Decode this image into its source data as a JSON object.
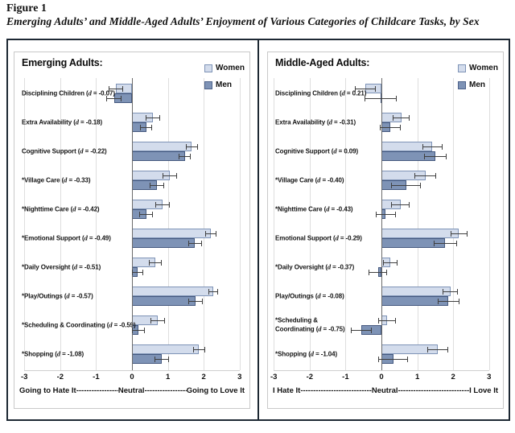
{
  "figure": {
    "label": "Figure 1",
    "caption": "Emerging Adults’ and Middle-Aged Adults’ Enjoyment of Various Categories of Childcare Tasks, by Sex"
  },
  "legend": {
    "women": "Women",
    "men": "Men"
  },
  "colors": {
    "women_fill": "#d3dcec",
    "women_border": "#7e93b6",
    "men_fill": "#7e93b6",
    "men_border": "#45597f",
    "error_bar": "#3f3f3f",
    "gridline": "#dedede",
    "zero_axis": "#6b6b6b",
    "outer_border": "#1d2833",
    "panel_border": "#c9c9c9"
  },
  "axis": {
    "ticks": [
      -3,
      -2,
      -1,
      0,
      1,
      2,
      3
    ],
    "dash_fill": "--------------------------------------------------------------------"
  },
  "chart_data": [
    {
      "type": "bar",
      "orientation": "horizontal",
      "title": "Emerging Adults:",
      "xlim": [
        -3,
        3
      ],
      "series_names": [
        "Women",
        "Men"
      ],
      "axis_caption": {
        "left": "Going to Hate It",
        "mid": "Neutral",
        "right": "Going to Love It"
      },
      "rows": [
        {
          "label": "Disciplining Children",
          "d": "-0.07",
          "women": -0.45,
          "women_err": 0.2,
          "men": -0.5,
          "men_err": 0.22
        },
        {
          "label": "Extra Availability",
          "d": "-0.18",
          "women": 0.58,
          "women_err": 0.2,
          "men": 0.4,
          "men_err": 0.17
        },
        {
          "label": "Cognitive Support",
          "d": "-0.22",
          "women": 1.67,
          "women_err": 0.17,
          "men": 1.47,
          "men_err": 0.17
        },
        {
          "label": "*Village Care",
          "d": "-0.33",
          "women": 1.05,
          "women_err": 0.2,
          "men": 0.7,
          "men_err": 0.2
        },
        {
          "label": "*Nighttime Care",
          "d": "-0.42",
          "women": 0.85,
          "women_err": 0.2,
          "men": 0.4,
          "men_err": 0.19
        },
        {
          "label": "*Emotional Support",
          "d": "-0.49",
          "women": 2.2,
          "women_err": 0.15,
          "men": 1.76,
          "men_err": 0.19
        },
        {
          "label": "*Daily Oversight",
          "d": "-0.51",
          "women": 0.64,
          "women_err": 0.18,
          "men": 0.16,
          "men_err": 0.16
        },
        {
          "label": "*Play/Outings",
          "d": "-0.57",
          "women": 2.26,
          "women_err": 0.14,
          "men": 1.78,
          "men_err": 0.2
        },
        {
          "label": "*Scheduling & Coordinating",
          "d": "-0.59",
          "women": 0.72,
          "women_err": 0.2,
          "men": 0.18,
          "men_err": 0.18
        },
        {
          "label": "*Shopping",
          "d": "-1.08",
          "women": 1.87,
          "women_err": 0.16,
          "men": 0.83,
          "men_err": 0.21
        }
      ]
    },
    {
      "type": "bar",
      "orientation": "horizontal",
      "title": "Middle-Aged Adults:",
      "xlim": [
        -3,
        3
      ],
      "series_names": [
        "Women",
        "Men"
      ],
      "axis_caption": {
        "left": "I Hate It",
        "mid": "Neutral",
        "right": "I Love It"
      },
      "rows": [
        {
          "label": "Disciplining Children",
          "d": "0.21",
          "women": -0.45,
          "women_err": 0.3,
          "men": -0.03,
          "men_err": 0.45
        },
        {
          "label": "Extra Availability",
          "d": "-0.31",
          "women": 0.55,
          "women_err": 0.24,
          "men": 0.25,
          "men_err": 0.29
        },
        {
          "label": "Cognitive Support",
          "d": "0.09",
          "women": 1.42,
          "women_err": 0.28,
          "men": 1.5,
          "men_err": 0.31
        },
        {
          "label": "*Village Care",
          "d": "-0.40",
          "women": 1.23,
          "women_err": 0.3,
          "men": 0.69,
          "men_err": 0.42
        },
        {
          "label": "*Nighttime Care",
          "d": "-0.43",
          "women": 0.53,
          "women_err": 0.25,
          "men": 0.12,
          "men_err": 0.28
        },
        {
          "label": "Emotional Support",
          "d": "-0.29",
          "women": 2.16,
          "women_err": 0.24,
          "men": 1.78,
          "men_err": 0.33
        },
        {
          "label": "*Daily Oversight",
          "d": "-0.37",
          "women": 0.25,
          "women_err": 0.2,
          "men": -0.1,
          "men_err": 0.26
        },
        {
          "label": "Play/Outings",
          "d": "-0.08",
          "women": 1.92,
          "women_err": 0.22,
          "men": 1.87,
          "men_err": 0.3
        },
        {
          "label": "*Scheduling & Coordinating",
          "d": "-0.75",
          "label_lines": [
            "*Scheduling &",
            "Coordinating"
          ],
          "women": 0.15,
          "women_err": 0.25,
          "men": -0.57,
          "men_err": 0.29
        },
        {
          "label": "*Shopping",
          "d": "-1.04",
          "women": 1.57,
          "women_err": 0.3,
          "men": 0.33,
          "men_err": 0.42
        }
      ]
    }
  ]
}
